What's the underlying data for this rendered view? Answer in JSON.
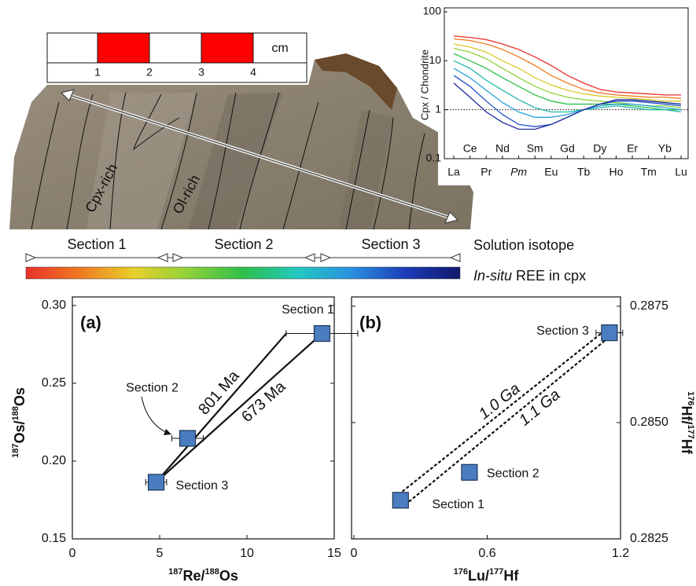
{
  "photo": {
    "labels": [
      "Cpx-rich",
      "Ol-rich"
    ],
    "scale_bar": {
      "ticks": [
        1,
        2,
        3,
        4
      ],
      "unit": "cm"
    }
  },
  "sections": {
    "labels": [
      "Section 1",
      "Section 2",
      "Section 3"
    ],
    "isotope_label": "Solution isotope",
    "ree_label": [
      "In-situ",
      "REE in cpx"
    ],
    "gradient": [
      "#e8312a",
      "#f07a22",
      "#e8d02a",
      "#8ed23a",
      "#2fbf4a",
      "#22c8c0",
      "#2a90e0",
      "#1c3cb8",
      "#10186a"
    ]
  },
  "chart_data": [
    {
      "type": "line",
      "ylabel": "Cpx / Chondrite",
      "ylog": true,
      "ylim": [
        0.1,
        100
      ],
      "yticks": [
        0.1,
        1,
        10,
        100
      ],
      "ref_line": 1,
      "categories": [
        "La",
        "Ce",
        "Pr",
        "Nd",
        "Pm",
        "Sm",
        "Eu",
        "Gd",
        "Tb",
        "Dy",
        "Ho",
        "Er",
        "Tm",
        "Yb",
        "Lu"
      ],
      "series": [
        {
          "color": "#e8312a",
          "values": [
            32,
            30,
            27,
            22,
            17,
            12,
            8,
            5,
            3.5,
            2.6,
            2.3,
            2.2,
            2.1,
            2.0,
            2.0
          ]
        },
        {
          "color": "#f07a22",
          "values": [
            28,
            26,
            22,
            17,
            12,
            8,
            5,
            3.5,
            2.6,
            2.2,
            2.0,
            1.9,
            1.8,
            1.8,
            1.7
          ]
        },
        {
          "color": "#d8c92a",
          "values": [
            22,
            19,
            15,
            10,
            7,
            4.5,
            3.2,
            2.5,
            2.1,
            1.9,
            1.8,
            1.7,
            1.6,
            1.5,
            1.5
          ]
        },
        {
          "color": "#8ed23a",
          "values": [
            18,
            15,
            11,
            7,
            4.5,
            3,
            2.2,
            1.8,
            1.6,
            1.5,
            1.4,
            1.3,
            1.2,
            1.2,
            1.1
          ]
        },
        {
          "color": "#2fbf4a",
          "values": [
            14,
            10,
            7,
            4.5,
            3,
            2,
            1.5,
            1.3,
            1.3,
            1.3,
            1.3,
            1.2,
            1.1,
            1.0,
            1.0
          ]
        },
        {
          "color": "#22b8a8",
          "values": [
            10,
            7,
            4,
            2.5,
            1.6,
            1.1,
            0.9,
            0.9,
            1.0,
            1.1,
            1.2,
            1.1,
            1.0,
            1.0,
            0.9
          ]
        },
        {
          "color": "#2aa0e0",
          "values": [
            7,
            4.5,
            2.5,
            1.4,
            0.9,
            0.7,
            0.7,
            0.8,
            1.0,
            1.2,
            1.3,
            1.3,
            1.2,
            1.1,
            1.0
          ]
        },
        {
          "color": "#2050c8",
          "values": [
            5,
            3,
            1.5,
            0.8,
            0.5,
            0.45,
            0.5,
            0.7,
            1.0,
            1.3,
            1.5,
            1.5,
            1.4,
            1.3,
            1.2
          ]
        },
        {
          "color": "#1a2a9a",
          "values": [
            3.5,
            1.8,
            0.9,
            0.55,
            0.4,
            0.4,
            0.5,
            0.7,
            1.0,
            1.3,
            1.6,
            1.6,
            1.5,
            1.4,
            1.3
          ]
        }
      ]
    },
    {
      "type": "scatter",
      "label": "(a)",
      "xlabel": [
        "187",
        "Re/",
        "188",
        "Os"
      ],
      "ylabel": [
        "187",
        "Os/",
        "188",
        "Os"
      ],
      "xlim": [
        0,
        15
      ],
      "xticks": [
        0,
        5,
        10,
        15
      ],
      "ylim": [
        0.15,
        0.3055
      ],
      "yticks": [
        0.15,
        {
          "value": 0.2,
          "label": "0.20"
        },
        0.25,
        {
          "value": 0.3,
          "label": "0.30"
        }
      ],
      "color": "#4a7cc0",
      "x": [
        14.3,
        6.6,
        4.8
      ],
      "values": [
        0.282,
        0.2146,
        0.1864
      ],
      "xerr": [
        2.05,
        0.9,
        0.6
      ],
      "point_labels": [
        "Section 1",
        "Section 2",
        "Section 3"
      ],
      "isochrons": [
        {
          "label": "801 Ma",
          "x": [
            4.8,
            12.25
          ],
          "y": [
            0.1864,
            0.282
          ]
        },
        {
          "label": "673 Ma",
          "x": [
            4.8,
            14.3
          ],
          "y": [
            0.1864,
            0.282
          ]
        }
      ]
    },
    {
      "type": "scatter",
      "label": "(b)",
      "xlabel": [
        "176",
        "Lu/",
        "177",
        "Hf"
      ],
      "ylabel": [
        "176",
        "Hf/",
        "177",
        "Hf"
      ],
      "yaxis": "right",
      "xlim": [
        0,
        1.2
      ],
      "xticks": [
        0,
        0.6,
        1.2
      ],
      "ylim": [
        0.2825,
        0.2877
      ],
      "yticks": [
        0.2825,
        {
          "value": 0.285,
          "label": "0.2850"
        },
        0.2875
      ],
      "color": "#4a7cc0",
      "x": [
        0.21,
        0.52,
        1.15
      ],
      "values": [
        0.28333,
        0.28393,
        0.28693
      ],
      "xerr": [
        null,
        null,
        0.06
      ],
      "yerr": [
        null,
        null,
        0.0001
      ],
      "point_labels": [
        "Section 1",
        "Section 2",
        "Section 3"
      ],
      "dashed": true,
      "isochrons": [
        {
          "label": "1.0 Ga",
          "x": [
            0.2,
            1.13
          ],
          "y": [
            0.28345,
            0.28698
          ]
        },
        {
          "label": "1.1 Ga",
          "x": [
            0.23,
            1.16
          ],
          "y": [
            0.28323,
            0.28688
          ]
        }
      ]
    }
  ]
}
